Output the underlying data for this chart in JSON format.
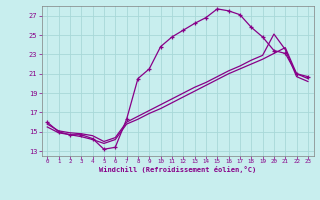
{
  "xlabel": "Windchill (Refroidissement éolien,°C)",
  "bg_color": "#c8eeee",
  "line_color": "#880088",
  "grid_color": "#a8d8d8",
  "xlim": [
    -0.5,
    23.5
  ],
  "ylim": [
    12.5,
    28.0
  ],
  "xticks": [
    0,
    1,
    2,
    3,
    4,
    5,
    6,
    7,
    8,
    9,
    10,
    11,
    12,
    13,
    14,
    15,
    16,
    17,
    18,
    19,
    20,
    21,
    22,
    23
  ],
  "yticks": [
    13,
    15,
    17,
    19,
    21,
    23,
    25,
    27
  ],
  "line1_x": [
    0,
    1,
    2,
    3,
    4,
    5,
    6,
    7,
    8,
    9,
    10,
    11,
    12,
    13,
    14,
    15,
    16,
    17,
    18,
    19,
    20,
    21,
    22,
    23
  ],
  "line1_y": [
    16.0,
    15.0,
    14.7,
    14.7,
    14.3,
    13.2,
    13.4,
    16.3,
    20.5,
    21.5,
    23.8,
    24.8,
    25.5,
    26.2,
    26.8,
    27.7,
    27.5,
    27.1,
    25.8,
    24.8,
    23.4,
    23.1,
    21.0,
    20.7
  ],
  "line2_x": [
    0,
    1,
    2,
    3,
    4,
    5,
    6,
    7,
    8,
    9,
    10,
    11,
    12,
    13,
    14,
    15,
    16,
    17,
    18,
    19,
    20,
    21,
    22,
    23
  ],
  "line2_y": [
    15.5,
    14.9,
    14.7,
    14.5,
    14.2,
    13.8,
    14.2,
    15.8,
    16.3,
    16.9,
    17.4,
    18.0,
    18.6,
    19.2,
    19.8,
    20.4,
    21.0,
    21.5,
    22.0,
    22.5,
    23.1,
    23.7,
    21.0,
    20.5
  ],
  "line3_x": [
    0,
    1,
    2,
    3,
    4,
    5,
    6,
    7,
    8,
    9,
    10,
    11,
    12,
    13,
    14,
    15,
    16,
    17,
    18,
    19,
    20,
    21,
    22,
    23
  ],
  "line3_y": [
    15.8,
    15.1,
    14.9,
    14.8,
    14.6,
    14.0,
    14.4,
    16.0,
    16.6,
    17.2,
    17.8,
    18.4,
    19.0,
    19.6,
    20.1,
    20.7,
    21.3,
    21.8,
    22.4,
    22.9,
    25.1,
    23.5,
    20.7,
    20.2
  ]
}
